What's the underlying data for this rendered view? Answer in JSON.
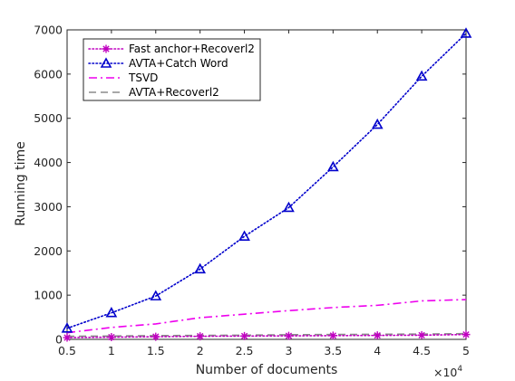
{
  "chart_data": {
    "type": "line",
    "title": "",
    "xlabel": "Number of documents",
    "ylabel": "Running time",
    "x_multiplier_label": "×10",
    "x_multiplier_exponent": "4",
    "x": [
      0.5,
      1,
      1.5,
      2,
      2.5,
      3,
      3.5,
      4,
      4.5,
      5
    ],
    "x_tick_labels": [
      "0.5",
      "1",
      "1.5",
      "2",
      "2.5",
      "3",
      "3.5",
      "4",
      "4.5",
      "5"
    ],
    "y_ticks": [
      0,
      1000,
      2000,
      3000,
      4000,
      5000,
      6000,
      7000
    ],
    "y_tick_labels": [
      "0",
      "1000",
      "2000",
      "3000",
      "4000",
      "5000",
      "6000",
      "7000"
    ],
    "xlim": [
      0.5,
      5
    ],
    "ylim": [
      0,
      7000
    ],
    "grid": false,
    "legend_position": "top-left",
    "series": [
      {
        "name": "Fast anchor+Recoverl2",
        "color": "#c000c0",
        "dash": "dotted",
        "marker": "star",
        "values": [
          40,
          50,
          60,
          70,
          75,
          80,
          85,
          90,
          95,
          110
        ]
      },
      {
        "name": "AVTA+Catch Word",
        "color": "#0000cc",
        "dash": "dotted",
        "marker": "triangle",
        "values": [
          250,
          600,
          980,
          1590,
          2330,
          2980,
          3900,
          4860,
          5950,
          6920
        ]
      },
      {
        "name": "TSVD",
        "color": "#ee00ee",
        "dash": "dashdot",
        "marker": "none",
        "values": [
          150,
          270,
          350,
          490,
          570,
          650,
          720,
          770,
          870,
          900
        ]
      },
      {
        "name": "AVTA+Recoverl2",
        "color": "#8c8c8c",
        "dash": "dashed",
        "marker": "none",
        "values": [
          70,
          75,
          85,
          90,
          95,
          105,
          110,
          115,
          120,
          130
        ]
      }
    ]
  }
}
